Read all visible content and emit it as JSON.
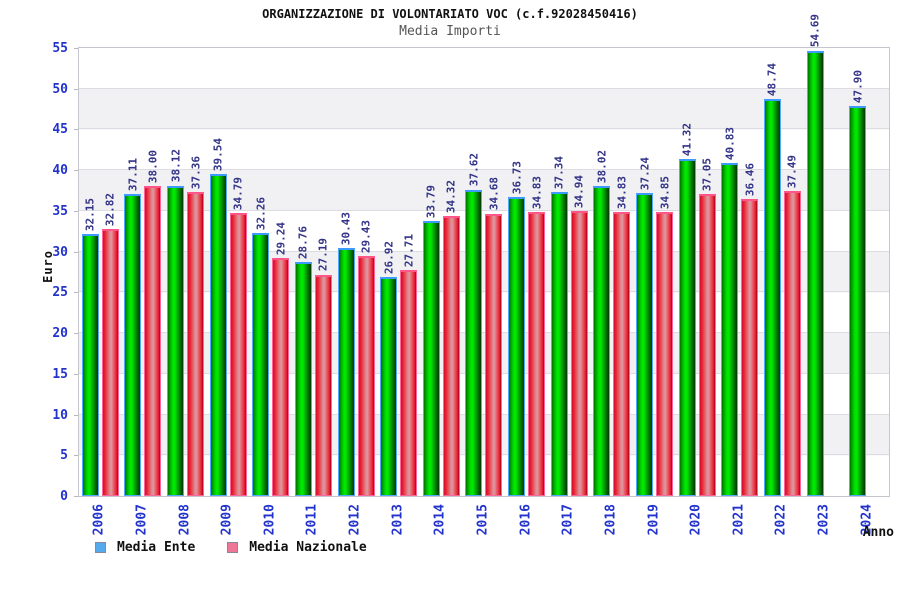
{
  "header": {
    "title": "ORGANIZZAZIONE DI VOLONTARIATO VOC (c.f.92028450416)",
    "subtitle": "Media Importi"
  },
  "chart_data": {
    "type": "bar",
    "title": "ORGANIZZAZIONE DI VOLONTARIATO VOC (c.f.92028450416)",
    "subtitle": "Media Importi",
    "xlabel": "Anno",
    "ylabel": "Euro",
    "ylim": [
      0,
      55
    ],
    "ytick_step": 5,
    "grid": "horizontal lines with alternating gray bands",
    "legend_position": "bottom-left",
    "value_labels": "rotated 90deg above each bar, two decimals",
    "categories": [
      "2006",
      "2007",
      "2008",
      "2009",
      "2010",
      "2011",
      "2012",
      "2013",
      "2014",
      "2015",
      "2016",
      "2017",
      "2018",
      "2019",
      "2020",
      "2021",
      "2022",
      "2023",
      "2024"
    ],
    "series": [
      {
        "name": "Media Ente",
        "bar_color": "green gradient",
        "legend_color": "#55aaee",
        "values": [
          32.15,
          37.11,
          38.12,
          39.54,
          32.26,
          28.76,
          30.43,
          26.92,
          33.79,
          37.62,
          36.73,
          37.34,
          38.02,
          37.24,
          41.32,
          40.83,
          48.74,
          54.69,
          47.9
        ]
      },
      {
        "name": "Media Nazionale",
        "bar_color": "red-pink gradient",
        "legend_color": "#ee7799",
        "values": [
          32.82,
          38.0,
          37.36,
          34.79,
          29.24,
          27.19,
          29.43,
          27.71,
          34.32,
          34.68,
          34.83,
          34.94,
          34.83,
          34.85,
          37.05,
          36.46,
          37.49,
          null,
          null
        ]
      }
    ],
    "colors": {
      "axis_tick_text": "#2233cc",
      "value_label_text": "#333388",
      "subtitle_text": "#555555",
      "band_gray": "#f1f1f4",
      "plot_border": "#c6c6ce"
    }
  }
}
